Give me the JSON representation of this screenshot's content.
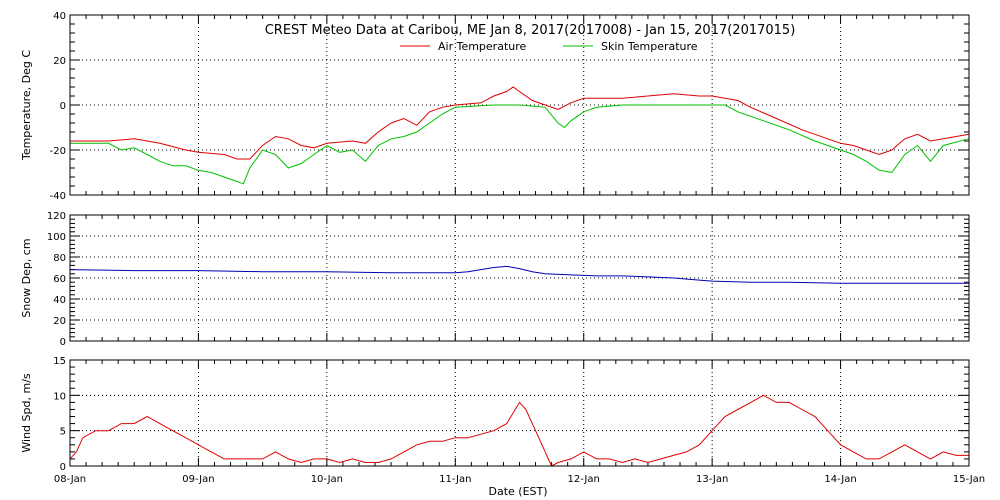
{
  "chart_data": {
    "type": "line",
    "title": "CREST Meteo Data at Caribou, ME   Jan  8, 2017(2017008) - Jan 15, 2017(2017015)",
    "xlabel": "Date (EST)",
    "x_range": [
      "08-Jan",
      "15-Jan"
    ],
    "x_ticks": [
      "08-Jan",
      "09-Jan",
      "10-Jan",
      "11-Jan",
      "12-Jan",
      "13-Jan",
      "14-Jan",
      "15-Jan"
    ],
    "grid": true,
    "colors": {
      "air": "#e00000",
      "skin": "#00c000",
      "snow": "#0000b0",
      "wind": "#e00000",
      "axis": "#000000",
      "grid": "#000000"
    },
    "panels": [
      {
        "id": "temperature",
        "ylabel": "Temperature, Deg C",
        "ylim": [
          -40,
          40
        ],
        "yticks": [
          "-40",
          "-20",
          "0",
          "20",
          "40"
        ],
        "legend_position": "top-center",
        "series": [
          {
            "name": "Air Temperature",
            "color": "#e00000",
            "x": [
              0,
              0.3,
              0.5,
              0.7,
              0.9,
              1.0,
              1.2,
              1.3,
              1.4,
              1.5,
              1.6,
              1.7,
              1.8,
              1.9,
              2.0,
              2.2,
              2.3,
              2.4,
              2.5,
              2.6,
              2.7,
              2.8,
              2.9,
              3.0,
              3.2,
              3.3,
              3.4,
              3.45,
              3.5,
              3.6,
              3.7,
              3.8,
              3.9,
              4.0,
              4.1,
              4.3,
              4.5,
              4.7,
              4.9,
              5.0,
              5.1,
              5.2,
              5.3,
              5.5,
              5.7,
              5.9,
              6.0,
              6.1,
              6.2,
              6.3,
              6.4,
              6.5,
              6.6,
              6.7,
              6.8,
              7.0
            ],
            "y": [
              -16,
              -16,
              -15,
              -17,
              -20,
              -21,
              -22,
              -24,
              -24,
              -18,
              -14,
              -15,
              -18,
              -19,
              -17,
              -16,
              -17,
              -12,
              -8,
              -6,
              -9,
              -3,
              -1,
              0,
              1,
              4,
              6,
              8,
              6,
              2,
              0,
              -2,
              1,
              3,
              3,
              3,
              4,
              5,
              4,
              4,
              3,
              2,
              -1,
              -6,
              -11,
              -15,
              -17,
              -18,
              -20,
              -22,
              -20,
              -15,
              -13,
              -16,
              -15,
              -13
            ]
          },
          {
            "name": "Skin Temperature",
            "color": "#00c000",
            "x": [
              0,
              0.3,
              0.4,
              0.5,
              0.6,
              0.7,
              0.8,
              0.9,
              1.0,
              1.1,
              1.2,
              1.3,
              1.35,
              1.4,
              1.5,
              1.6,
              1.7,
              1.8,
              1.9,
              2.0,
              2.1,
              2.2,
              2.3,
              2.4,
              2.5,
              2.6,
              2.7,
              2.8,
              2.9,
              3.0,
              3.3,
              3.5,
              3.7,
              3.8,
              3.85,
              3.9,
              4.0,
              4.1,
              4.3,
              4.5,
              4.7,
              4.9,
              5.0,
              5.1,
              5.2,
              5.4,
              5.6,
              5.8,
              6.0,
              6.1,
              6.2,
              6.3,
              6.4,
              6.5,
              6.6,
              6.7,
              6.8,
              7.0
            ],
            "y": [
              -17,
              -17,
              -20,
              -19,
              -22,
              -25,
              -27,
              -27,
              -29,
              -30,
              -32,
              -34,
              -35,
              -28,
              -20,
              -22,
              -28,
              -26,
              -22,
              -18,
              -21,
              -20,
              -25,
              -18,
              -15,
              -14,
              -12,
              -8,
              -4,
              -1,
              0,
              0,
              -1,
              -8,
              -10,
              -7,
              -3,
              -1,
              0,
              0,
              0,
              0,
              0,
              0,
              -3,
              -7,
              -11,
              -16,
              -20,
              -22,
              -25,
              -29,
              -30,
              -22,
              -18,
              -25,
              -18,
              -15
            ]
          }
        ]
      },
      {
        "id": "snow",
        "ylabel": "Snow Dep, cm",
        "ylim": [
          0,
          120
        ],
        "yticks": [
          "0",
          "20",
          "40",
          "60",
          "80",
          "100",
          "120"
        ],
        "series": [
          {
            "name": "",
            "color": "#0000b0",
            "x": [
              0,
              0.5,
              1.0,
              1.5,
              2.0,
              2.5,
              3.0,
              3.1,
              3.2,
              3.3,
              3.4,
              3.5,
              3.6,
              3.7,
              3.9,
              4.1,
              4.3,
              4.5,
              4.7,
              4.9,
              5.0,
              5.3,
              5.6,
              6.0,
              6.5,
              7.0
            ],
            "y": [
              68,
              67,
              67,
              66,
              66,
              65,
              65,
              66,
              68,
              70,
              71,
              69,
              66,
              64,
              63,
              62,
              62,
              61,
              60,
              58,
              57,
              56,
              56,
              55,
              55,
              55
            ]
          }
        ]
      },
      {
        "id": "wind",
        "ylabel": "Wind Spd, m/s",
        "ylim": [
          0,
          15
        ],
        "yticks": [
          "0",
          "5",
          "10",
          "15"
        ],
        "series": [
          {
            "name": "",
            "color": "#e00000",
            "x": [
              0,
              0.05,
              0.1,
              0.2,
              0.3,
              0.4,
              0.5,
              0.6,
              0.7,
              0.8,
              0.9,
              1.0,
              1.1,
              1.2,
              1.3,
              1.4,
              1.5,
              1.6,
              1.7,
              1.8,
              1.9,
              2.0,
              2.1,
              2.2,
              2.3,
              2.4,
              2.5,
              2.6,
              2.7,
              2.8,
              2.9,
              3.0,
              3.1,
              3.2,
              3.3,
              3.4,
              3.5,
              3.55,
              3.6,
              3.7,
              3.75,
              3.8,
              3.9,
              4.0,
              4.1,
              4.2,
              4.3,
              4.4,
              4.5,
              4.6,
              4.7,
              4.8,
              4.9,
              5.0,
              5.1,
              5.2,
              5.3,
              5.4,
              5.5,
              5.6,
              5.7,
              5.8,
              5.9,
              6.0,
              6.1,
              6.2,
              6.3,
              6.4,
              6.5,
              6.6,
              6.7,
              6.8,
              6.9,
              7.0
            ],
            "y": [
              1,
              2,
              4,
              5,
              5,
              6,
              6,
              7,
              6,
              5,
              4,
              3,
              2,
              1,
              1,
              1,
              1,
              2,
              1,
              0.5,
              1,
              1,
              0.5,
              1,
              0.5,
              0.5,
              1,
              2,
              3,
              3.5,
              3.5,
              4,
              4,
              4.5,
              5,
              6,
              9,
              8,
              6,
              2,
              0,
              0.5,
              1,
              2,
              1,
              1,
              0.5,
              1,
              0.5,
              1,
              1.5,
              2,
              3,
              5,
              7,
              8,
              9,
              10,
              9,
              9,
              8,
              7,
              5,
              3,
              2,
              1,
              1,
              2,
              3,
              2,
              1,
              2,
              1.5,
              1.5
            ]
          }
        ]
      }
    ]
  }
}
